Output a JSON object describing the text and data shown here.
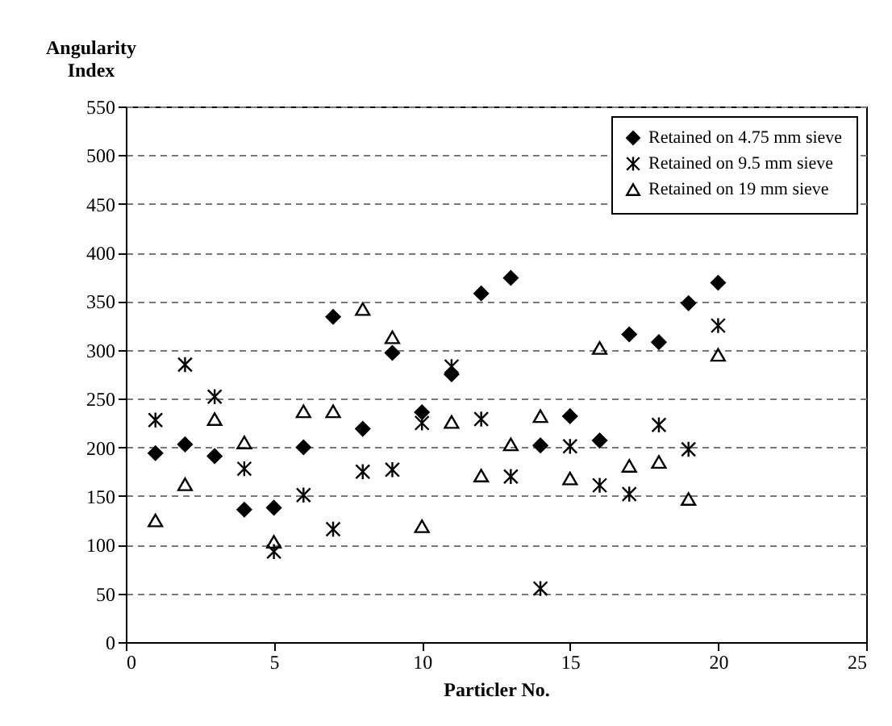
{
  "chart_data": {
    "type": "scatter",
    "xlabel": "Particler No.",
    "ylabel": "Angularity Index",
    "x": [
      1,
      2,
      3,
      4,
      5,
      6,
      7,
      8,
      9,
      10,
      11,
      12,
      13,
      14,
      15,
      16,
      17,
      18,
      19,
      20
    ],
    "series": [
      {
        "name": "Retained on 4.75 mm sieve",
        "color": "#000000",
        "marker": "diamond",
        "values": [
          194,
          203,
          191,
          136,
          138,
          200,
          334,
          219,
          297,
          236,
          275,
          358,
          374,
          202,
          232,
          207,
          316,
          308,
          348,
          369
        ]
      },
      {
        "name": "Retained on 9.5 mm sieve",
        "color": "#000000",
        "marker": "cross",
        "values": [
          228,
          285,
          252,
          178,
          93,
          151,
          116,
          175,
          177,
          225,
          283,
          229,
          170,
          55,
          201,
          161,
          152,
          223,
          198,
          325
        ]
      },
      {
        "name": "Retained on 19 mm sieve",
        "color": "#000000",
        "marker": "triangle",
        "values": [
          125,
          162,
          229,
          205,
          103,
          237,
          237,
          342,
          313,
          119,
          226,
          171,
          203,
          232,
          168,
          302,
          181,
          185,
          147,
          295
        ]
      }
    ],
    "xlim": [
      0,
      25
    ],
    "xticks": [
      0,
      5,
      10,
      15,
      20,
      25
    ],
    "ylim": [
      0,
      550
    ],
    "yticks": [
      0,
      50,
      100,
      150,
      200,
      250,
      300,
      350,
      400,
      450,
      500,
      550
    ],
    "grid": "y",
    "legend": "top right"
  }
}
